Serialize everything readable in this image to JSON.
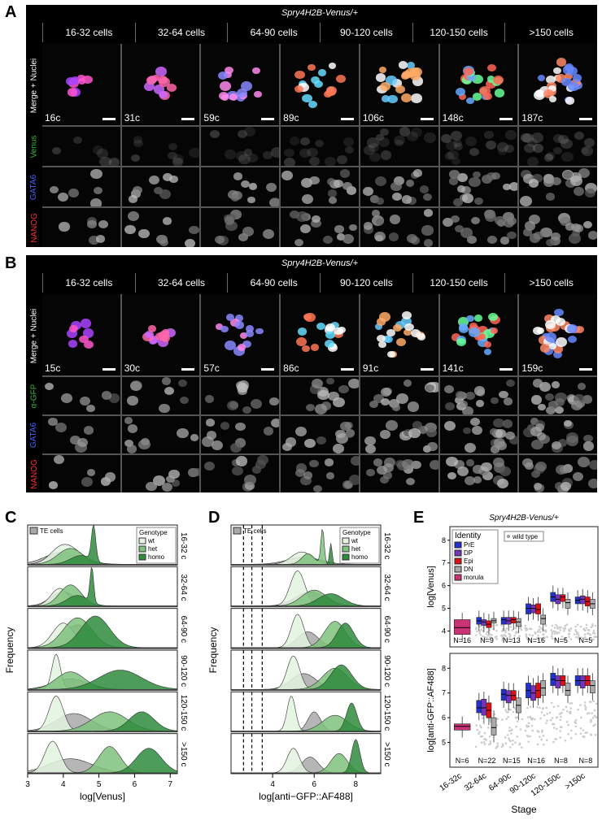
{
  "panels": {
    "A": "A",
    "B": "B",
    "C": "C",
    "D": "D",
    "E": "E"
  },
  "micro_A": {
    "header": "Spry4H2B-Venus/+",
    "stages": [
      "16-32 cells",
      "32-64 cells",
      "64-90 cells",
      "90-120 cells",
      "120-150 cells",
      ">150 cells"
    ],
    "rows": [
      "Merge + Nuclei",
      "Venus",
      "GATA6",
      "NANOG"
    ],
    "row_colors": [
      "#ffffff",
      "#22aa22",
      "#3355ff",
      "#ff2222"
    ],
    "counts": [
      "16c",
      "31c",
      "59c",
      "89c",
      "106c",
      "148c",
      "187c"
    ]
  },
  "micro_B": {
    "header": "Spry4H2B-Venus/+",
    "stages": [
      "16-32 cells",
      "32-64 cells",
      "64-90 cells",
      "90-120 cells",
      "120-150 cells",
      ">150 cells"
    ],
    "rows": [
      "Merge + Nuclei",
      "α-GFP",
      "GATA6",
      "NANOG"
    ],
    "row_colors": [
      "#ffffff",
      "#22aa22",
      "#3355ff",
      "#ff2222"
    ],
    "counts": [
      "15c",
      "30c",
      "57c",
      "86c",
      "91c",
      "141c",
      "159c"
    ]
  },
  "chart_data": [
    {
      "type": "area",
      "panel": "C",
      "xlabel": "log[Venus]",
      "ylabel": "Frequency",
      "xlim": [
        3,
        7.2
      ],
      "xticks": [
        3,
        4,
        5,
        6,
        7
      ],
      "te_label": "TE cells",
      "legend_title": "Genotype",
      "legend": [
        "wt",
        "het",
        "homo"
      ],
      "colors": {
        "te": "#a9a9a9",
        "wt": "#e3f3df",
        "het": "#7fc27d",
        "homo": "#2e8b3c"
      },
      "facets": [
        "16-32 c",
        "32-64 c",
        "64-90 c",
        "90-120 c",
        "120-150 c",
        ">150 c"
      ]
    },
    {
      "type": "area",
      "panel": "D",
      "xlabel": "log[anti−GFP::AF488]",
      "ylabel": "Frequency",
      "xlim": [
        2,
        9.2
      ],
      "xticks": [
        4,
        6,
        8
      ],
      "te_label": "TE cells",
      "legend_title": "Genotype",
      "legend": [
        "wt",
        "het",
        "homo"
      ],
      "dashed_lines": [
        2.6,
        3.0,
        3.5
      ],
      "facets": [
        "16-32 c",
        "32-64 c",
        "64-90 c",
        "90-120 c",
        "120-150 c",
        ">150 c"
      ]
    },
    {
      "type": "box",
      "panel": "E",
      "title": "Spry4H2B-Venus/+",
      "legend_title": "Identity",
      "identities": [
        "PrE",
        "DP",
        "Epi",
        "DN",
        "morula"
      ],
      "identity_colors": [
        "#2233cc",
        "#7733bb",
        "#dd1111",
        "#aaaaaa",
        "#cc3377"
      ],
      "wt_label": "wild type",
      "xlabel": "Stage",
      "stages": [
        "16-32c",
        "32-64c",
        "64-90c",
        "90-120c",
        "120-150c",
        ">150c"
      ],
      "top": {
        "ylabel": "log[Venus]",
        "ylim": [
          3.3,
          8.6
        ],
        "yticks": [
          4,
          5,
          6,
          7,
          8
        ],
        "n_labels": [
          "N=16",
          "N=9",
          "N=13",
          "N=16",
          "N=5",
          "N=5"
        ]
      },
      "bottom": {
        "ylabel": "log[anti-GFP::AF488]",
        "ylim": [
          4,
          8.6
        ],
        "yticks": [
          5,
          6,
          7,
          8
        ],
        "n_labels": [
          "N=6",
          "N=22",
          "N=15",
          "N=16",
          "N=8",
          "N=8"
        ]
      }
    }
  ]
}
